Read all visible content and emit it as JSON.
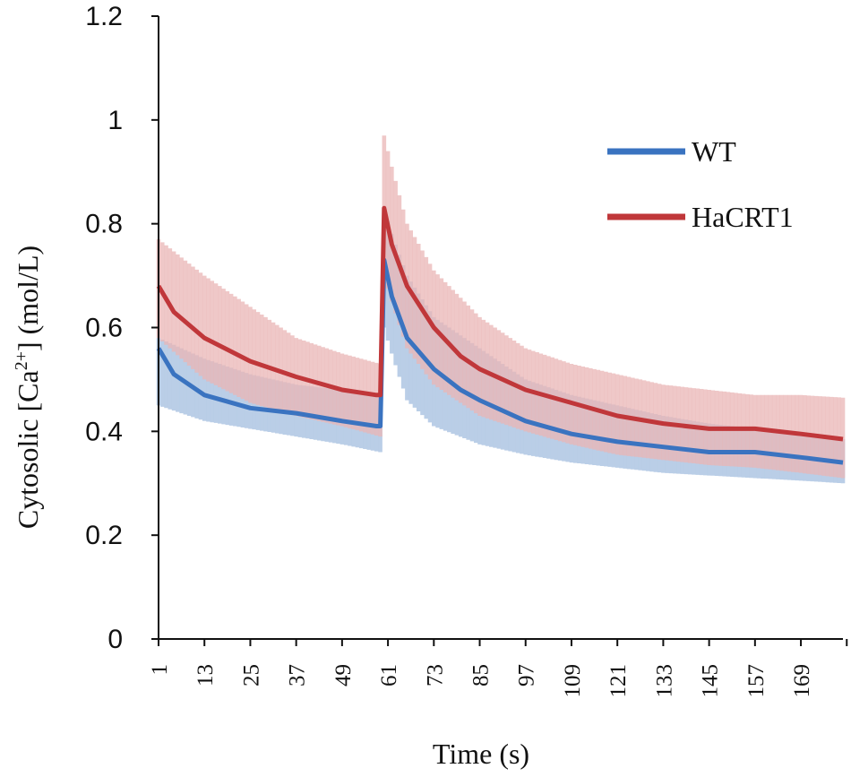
{
  "chart_data": {
    "type": "line",
    "title": "",
    "xlabel": "Time (s)",
    "ylabel_prefix": "Cytosolic [Ca",
    "ylabel_sup": "2+",
    "ylabel_suffix": "] (mol/L)",
    "ylim": [
      0,
      1.2
    ],
    "xlim": [
      1,
      180
    ],
    "yticks": [
      0,
      0.2,
      0.4,
      0.6,
      0.8,
      1,
      1.2
    ],
    "ytick_labels": [
      "0",
      "0.2",
      "0.4",
      "0.6",
      "0.8",
      "1",
      "1.2"
    ],
    "xticks": [
      1,
      13,
      25,
      37,
      49,
      61,
      73,
      85,
      97,
      109,
      121,
      133,
      145,
      157,
      169
    ],
    "xtick_labels": [
      "1",
      "13",
      "25",
      "37",
      "49",
      "61",
      "73",
      "85",
      "97",
      "109",
      "121",
      "133",
      "145",
      "157",
      "169"
    ],
    "legend_position": "upper-right",
    "series": [
      {
        "name": "WT",
        "color": "#3a73c0",
        "band_color": "#b6cbe6",
        "points": [
          [
            1,
            0.56
          ],
          [
            5,
            0.51
          ],
          [
            13,
            0.47
          ],
          [
            25,
            0.445
          ],
          [
            37,
            0.435
          ],
          [
            49,
            0.42
          ],
          [
            58,
            0.41
          ],
          [
            59,
            0.41
          ],
          [
            60,
            0.73
          ],
          [
            62,
            0.66
          ],
          [
            66,
            0.58
          ],
          [
            73,
            0.52
          ],
          [
            80,
            0.48
          ],
          [
            85,
            0.46
          ],
          [
            97,
            0.42
          ],
          [
            109,
            0.395
          ],
          [
            121,
            0.38
          ],
          [
            133,
            0.37
          ],
          [
            145,
            0.36
          ],
          [
            157,
            0.36
          ],
          [
            169,
            0.35
          ],
          [
            180,
            0.34
          ]
        ],
        "lower": [
          [
            1,
            0.45
          ],
          [
            13,
            0.42
          ],
          [
            25,
            0.405
          ],
          [
            37,
            0.39
          ],
          [
            49,
            0.375
          ],
          [
            59,
            0.36
          ],
          [
            60,
            0.6
          ],
          [
            62,
            0.55
          ],
          [
            66,
            0.46
          ],
          [
            73,
            0.41
          ],
          [
            85,
            0.375
          ],
          [
            97,
            0.355
          ],
          [
            109,
            0.34
          ],
          [
            121,
            0.33
          ],
          [
            133,
            0.32
          ],
          [
            145,
            0.315
          ],
          [
            157,
            0.31
          ],
          [
            169,
            0.305
          ],
          [
            180,
            0.3
          ]
        ],
        "upper": [
          [
            1,
            0.58
          ],
          [
            13,
            0.54
          ],
          [
            25,
            0.51
          ],
          [
            37,
            0.49
          ],
          [
            49,
            0.48
          ],
          [
            59,
            0.47
          ],
          [
            60,
            0.83
          ],
          [
            62,
            0.78
          ],
          [
            66,
            0.7
          ],
          [
            73,
            0.62
          ],
          [
            85,
            0.56
          ],
          [
            97,
            0.5
          ],
          [
            109,
            0.47
          ],
          [
            121,
            0.45
          ],
          [
            133,
            0.43
          ],
          [
            145,
            0.415
          ],
          [
            157,
            0.405
          ],
          [
            169,
            0.395
          ],
          [
            180,
            0.385
          ]
        ]
      },
      {
        "name": "HaCRT1",
        "color": "#c0373a",
        "band_color": "#eab5b6",
        "points": [
          [
            1,
            0.68
          ],
          [
            5,
            0.63
          ],
          [
            13,
            0.58
          ],
          [
            25,
            0.535
          ],
          [
            37,
            0.505
          ],
          [
            49,
            0.48
          ],
          [
            58,
            0.47
          ],
          [
            59,
            0.47
          ],
          [
            60,
            0.83
          ],
          [
            62,
            0.76
          ],
          [
            66,
            0.68
          ],
          [
            73,
            0.6
          ],
          [
            80,
            0.545
          ],
          [
            85,
            0.52
          ],
          [
            97,
            0.48
          ],
          [
            109,
            0.455
          ],
          [
            121,
            0.43
          ],
          [
            133,
            0.415
          ],
          [
            145,
            0.405
          ],
          [
            157,
            0.405
          ],
          [
            169,
            0.395
          ],
          [
            180,
            0.385
          ]
        ],
        "lower": [
          [
            1,
            0.58
          ],
          [
            13,
            0.5
          ],
          [
            25,
            0.455
          ],
          [
            37,
            0.43
          ],
          [
            49,
            0.41
          ],
          [
            59,
            0.39
          ],
          [
            60,
            0.7
          ],
          [
            62,
            0.65
          ],
          [
            66,
            0.56
          ],
          [
            73,
            0.49
          ],
          [
            85,
            0.43
          ],
          [
            97,
            0.4
          ],
          [
            109,
            0.375
          ],
          [
            121,
            0.355
          ],
          [
            133,
            0.345
          ],
          [
            145,
            0.335
          ],
          [
            157,
            0.33
          ],
          [
            169,
            0.32
          ],
          [
            180,
            0.31
          ]
        ],
        "upper": [
          [
            1,
            0.77
          ],
          [
            13,
            0.7
          ],
          [
            25,
            0.64
          ],
          [
            37,
            0.58
          ],
          [
            49,
            0.55
          ],
          [
            59,
            0.53
          ],
          [
            60,
            0.97
          ],
          [
            62,
            0.91
          ],
          [
            66,
            0.8
          ],
          [
            73,
            0.71
          ],
          [
            85,
            0.62
          ],
          [
            97,
            0.56
          ],
          [
            109,
            0.53
          ],
          [
            121,
            0.51
          ],
          [
            133,
            0.49
          ],
          [
            145,
            0.48
          ],
          [
            157,
            0.47
          ],
          [
            169,
            0.47
          ],
          [
            180,
            0.465
          ]
        ]
      }
    ]
  }
}
